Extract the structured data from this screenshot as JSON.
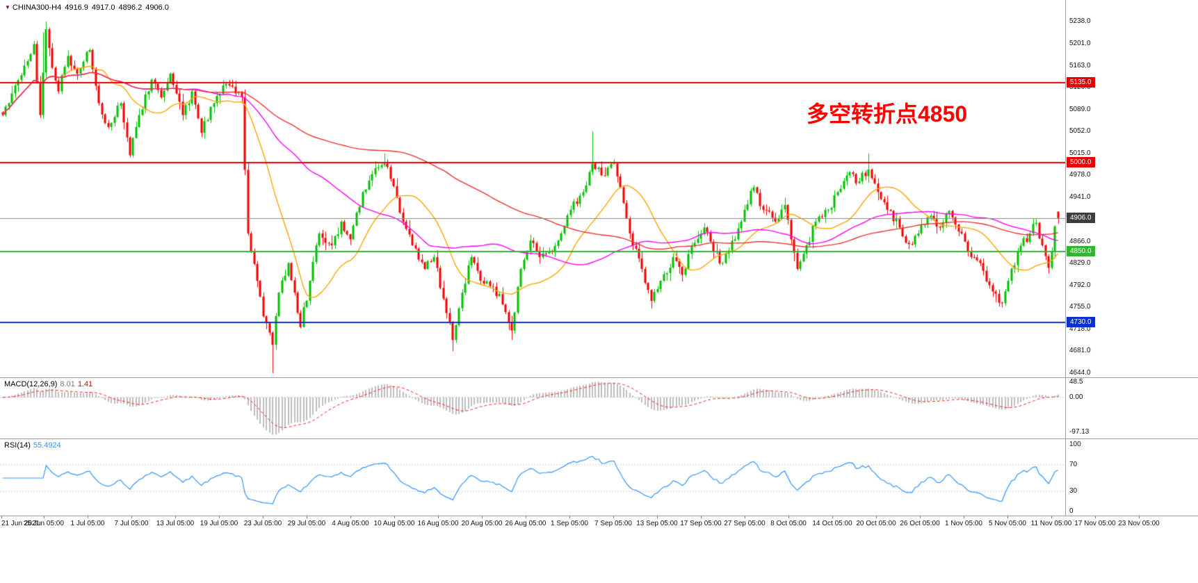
{
  "title_bar": {
    "icon": "▼",
    "symbol_period": "CHINA300-H4",
    "open": "4916.9",
    "high": "4917.0",
    "low": "4896.2",
    "close": "4906.0"
  },
  "chart_data": {
    "type": "candlestick",
    "title": "CHINA300- H4 candlestick chart with MACD and RSI",
    "price_range": {
      "min": 4644.0,
      "max": 5238.0
    },
    "bars_count": 341,
    "candle_colors": {
      "up": "#00c100",
      "down": "#f50000"
    },
    "close_waypoints": [
      [
        0,
        5080
      ],
      [
        4,
        5130
      ],
      [
        10,
        5200
      ],
      [
        12,
        5080
      ],
      [
        14,
        5225
      ],
      [
        16,
        5160
      ],
      [
        18,
        5120
      ],
      [
        21,
        5180
      ],
      [
        24,
        5150
      ],
      [
        28,
        5190
      ],
      [
        31,
        5100
      ],
      [
        34,
        5060
      ],
      [
        38,
        5100
      ],
      [
        41,
        5012
      ],
      [
        44,
        5080
      ],
      [
        48,
        5140
      ],
      [
        51,
        5110
      ],
      [
        54,
        5150
      ],
      [
        58,
        5080
      ],
      [
        61,
        5120
      ],
      [
        64,
        5050
      ],
      [
        68,
        5100
      ],
      [
        71,
        5130
      ],
      [
        74,
        5128
      ],
      [
        77,
        5110
      ],
      [
        79,
        4880
      ],
      [
        82,
        4800
      ],
      [
        84,
        4740
      ],
      [
        87,
        4692
      ],
      [
        89,
        4780
      ],
      [
        92,
        4830
      ],
      [
        94,
        4780
      ],
      [
        96,
        4722
      ],
      [
        99,
        4800
      ],
      [
        102,
        4880
      ],
      [
        106,
        4860
      ],
      [
        109,
        4900
      ],
      [
        112,
        4870
      ],
      [
        116,
        4950
      ],
      [
        119,
        4980
      ],
      [
        123,
        4998
      ],
      [
        126,
        4960
      ],
      [
        129,
        4900
      ],
      [
        132,
        4860
      ],
      [
        136,
        4820
      ],
      [
        139,
        4840
      ],
      [
        142,
        4770
      ],
      [
        145,
        4700
      ],
      [
        148,
        4780
      ],
      [
        151,
        4840
      ],
      [
        154,
        4800
      ],
      [
        158,
        4790
      ],
      [
        161,
        4760
      ],
      [
        164,
        4716
      ],
      [
        167,
        4820
      ],
      [
        170,
        4868
      ],
      [
        173,
        4840
      ],
      [
        177,
        4850
      ],
      [
        180,
        4880
      ],
      [
        183,
        4920
      ],
      [
        187,
        4950
      ],
      [
        190,
        4998
      ],
      [
        193,
        4978
      ],
      [
        197,
        4998
      ],
      [
        199,
        4958
      ],
      [
        202,
        4880
      ],
      [
        206,
        4820
      ],
      [
        209,
        4766
      ],
      [
        212,
        4800
      ],
      [
        216,
        4840
      ],
      [
        219,
        4810
      ],
      [
        222,
        4860
      ],
      [
        226,
        4890
      ],
      [
        229,
        4850
      ],
      [
        232,
        4830
      ],
      [
        236,
        4870
      ],
      [
        239,
        4920
      ],
      [
        242,
        4958
      ],
      [
        245,
        4920
      ],
      [
        249,
        4900
      ],
      [
        252,
        4928
      ],
      [
        256,
        4820
      ],
      [
        259,
        4860
      ],
      [
        262,
        4900
      ],
      [
        266,
        4920
      ],
      [
        269,
        4950
      ],
      [
        272,
        4978
      ],
      [
        276,
        4968
      ],
      [
        279,
        4988
      ],
      [
        282,
        4950
      ],
      [
        285,
        4920
      ],
      [
        289,
        4890
      ],
      [
        292,
        4862
      ],
      [
        295,
        4880
      ],
      [
        299,
        4910
      ],
      [
        302,
        4890
      ],
      [
        305,
        4918
      ],
      [
        309,
        4880
      ],
      [
        312,
        4840
      ],
      [
        315,
        4830
      ],
      [
        319,
        4782
      ],
      [
        322,
        4762
      ],
      [
        324,
        4800
      ],
      [
        327,
        4850
      ],
      [
        331,
        4880
      ],
      [
        333,
        4898
      ],
      [
        335,
        4860
      ],
      [
        337,
        4822
      ],
      [
        338,
        4850
      ],
      [
        339,
        4892
      ],
      [
        340,
        4906
      ]
    ],
    "extreme_wicks": [
      {
        "index": 13,
        "high": 5220
      },
      {
        "index": 14,
        "high": 5238
      },
      {
        "index": 87,
        "low": 4644
      },
      {
        "index": 123,
        "high": 5015
      },
      {
        "index": 145,
        "low": 4681
      },
      {
        "index": 164,
        "low": 4700
      },
      {
        "index": 190,
        "high": 5052
      },
      {
        "index": 279,
        "high": 5015
      },
      {
        "index": 322,
        "low": 4755
      }
    ],
    "last_bar": {
      "open": 4916.9,
      "high": 4917.0,
      "low": 4896.2,
      "close": 4906.0
    },
    "moving_averages": [
      {
        "type": "sma",
        "period": 20,
        "color": "#ffa500"
      },
      {
        "type": "sma",
        "period": 60,
        "color": "#ff00ff"
      },
      {
        "type": "sma",
        "period": 130,
        "color": "#f03030"
      }
    ],
    "horizontal_lines": [
      {
        "value": 5135.0,
        "label": "5135.0",
        "color": "#e60000"
      },
      {
        "value": 5000.0,
        "label": "5000.0",
        "color": "#e60000"
      },
      {
        "value": 4850.0,
        "label": "4850.0",
        "color": "#33b533"
      },
      {
        "value": 4730.0,
        "label": "4730.0",
        "color": "#0a2fd0"
      }
    ],
    "current_price_line": {
      "value": 4906.0,
      "label": "4906.0",
      "line_color": "#8a8a8a",
      "label_bg": "#3d3d3d"
    },
    "annotation": {
      "text": "多空转折点4850",
      "color": "#ff0000"
    },
    "y_axis": {
      "ticks": [
        {
          "label": "5238.0",
          "value": 5238
        },
        {
          "label": "5201.0",
          "value": 5201
        },
        {
          "label": "5163.0",
          "value": 5163
        },
        {
          "label": "5126.0",
          "value": 5126
        },
        {
          "label": "5089.0",
          "value": 5089
        },
        {
          "label": "5052.0",
          "value": 5052
        },
        {
          "label": "5015.0",
          "value": 5015
        },
        {
          "label": "4978.0",
          "value": 4978
        },
        {
          "label": "4941.0",
          "value": 4941
        },
        {
          "label": "4866.0",
          "value": 4866
        },
        {
          "label": "4829.0",
          "value": 4829
        },
        {
          "label": "4792.0",
          "value": 4792
        },
        {
          "label": "4755.0",
          "value": 4755
        },
        {
          "label": "4718.0",
          "value": 4718
        },
        {
          "label": "4681.0",
          "value": 4681
        },
        {
          "label": "4644.0",
          "value": 4644
        }
      ]
    },
    "x_axis": {
      "labels": [
        "21 Jun 2021",
        "25 Jun 05:00",
        "1 Jul 05:00",
        "7 Jul 05:00",
        "13 Jul 05:00",
        "19 Jul 05:00",
        "23 Jul 05:00",
        "29 Jul 05:00",
        "4 Aug 05:00",
        "10 Aug 05:00",
        "16 Aug 05:00",
        "20 Aug 05:00",
        "26 Aug 05:00",
        "1 Sep 05:00",
        "7 Sep 05:00",
        "13 Sep 05:00",
        "17 Sep 05:00",
        "27 Sep 05:00",
        "8 Oct 05:00",
        "14 Oct 05:00",
        "20 Oct 05:00",
        "26 Oct 05:00",
        "1 Nov 05:00",
        "5 Nov 05:00",
        "11 Nov 05:00",
        "17 Nov 05:00",
        "23 Nov 05:00"
      ]
    },
    "indicators": [
      {
        "name": "MACD",
        "params": [
          12,
          26,
          9
        ],
        "name_label": "MACD(12,26,9)",
        "value_main": "8.01",
        "value_signal": "1.41",
        "axis_labels": [
          "48.5",
          "0.00",
          "-97.13"
        ],
        "histogram_color": "#bdbdbd",
        "signal_color": "#ff2020"
      },
      {
        "name": "RSI",
        "params": [
          14
        ],
        "name_label": "RSI(14)",
        "value": "55.4924",
        "axis_labels": [
          "100",
          "70",
          "30",
          "0"
        ],
        "line_color": "#2f96ff",
        "levels": [
          70,
          30
        ]
      }
    ]
  }
}
